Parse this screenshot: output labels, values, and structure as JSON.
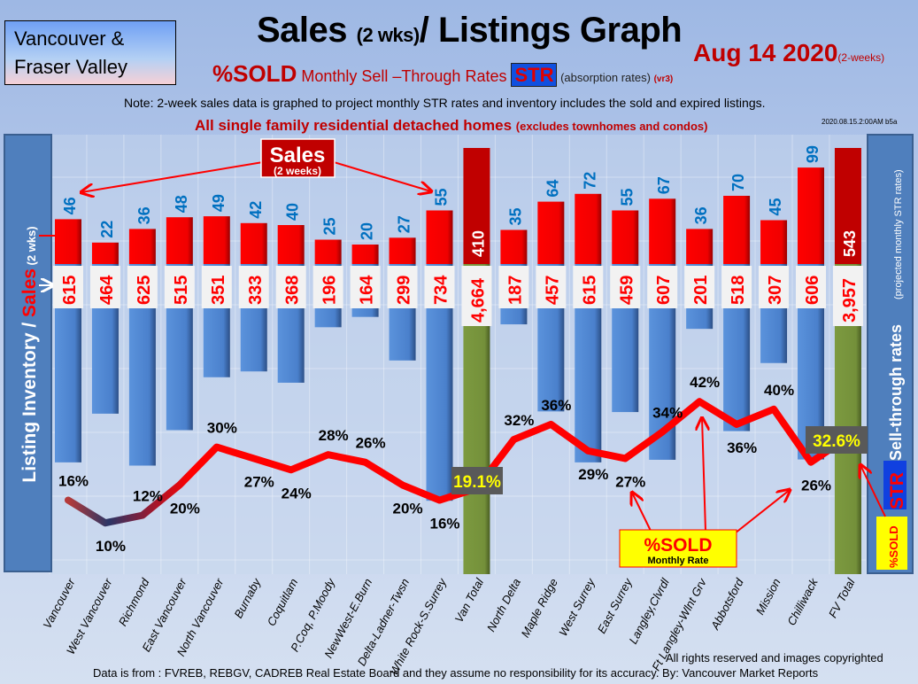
{
  "header": {
    "region": [
      "Vancouver &",
      "Fraser Valley"
    ],
    "title_main": "Sales ",
    "title_small": "(2 wks)",
    "title_rest": "/ Listings Graph",
    "date": "Aug 14  2020",
    "date_note": "(2-weeks)",
    "sold_label": "%SOLD",
    "str_desc": " Monthly Sell –Through Rates ",
    "str_badge": "STR",
    "absorption": "  (absorption rates) ",
    "version": "(vr3)",
    "note": "Note: 2-week sales data is graphed to project monthly STR rates and inventory includes the sold and expired listings.",
    "scope": "All single family residential detached homes ",
    "scope_note": "(excludes townhomes and condos)",
    "stamp": "2020.08.15.2:00AM b5a"
  },
  "footer": {
    "rights": "All rights reserved and  images copyrighted",
    "source": "Data is from : FVREB, REBGV, CADREB Real Estate Board and they assume no responsibility for its accuracy. By: Vancouver Market Reports"
  },
  "chart_data": {
    "type": "bar",
    "title": "Sales (2 wks)/ Listings Graph",
    "left_axis_label": {
      "part1": "Listing Inventory / ",
      "part2": "Sales",
      "part3": " (2  wks)"
    },
    "right_axis_label": {
      "main": "Sell-through rates",
      "sub": "  (projected monthly STR rates)",
      "str": "STR",
      "sold": "%SOLD"
    },
    "annotations": {
      "sales": "Sales",
      "sales_sub": "(2 weeks)",
      "sold": "%SOLD",
      "sold_sub": "Monthly Rate"
    },
    "categories": [
      "Vancouver",
      "West Vancouver",
      "Richmond",
      "East Vancouver",
      "North Vancouver",
      "Burnaby",
      "Coquitlam",
      "P.Coq, P.Moody",
      "NewWest-E.Burn",
      "Delta-Ladner-Twsn",
      "White Rock-S.Surrey",
      "Van Total",
      "North Delta",
      "Maple Ridge",
      "West Surrey",
      "East Surrey",
      "Langley,Clvrdl",
      "Ft Langley-Wlnt Grv",
      "Abbotsford",
      "Mission",
      "Chilliwack",
      "FV Total"
    ],
    "totals": [
      "Van Total",
      "FV Total"
    ],
    "series": [
      {
        "name": "Sales (2 weeks)",
        "values": [
          46,
          22,
          36,
          48,
          49,
          42,
          40,
          25,
          20,
          27,
          55,
          410,
          35,
          64,
          72,
          55,
          67,
          36,
          70,
          45,
          99,
          543
        ],
        "labels": [
          "46",
          "22",
          "36",
          "48",
          "49",
          "42",
          "40",
          "25",
          "20",
          "27",
          "55",
          "410",
          "35",
          "64",
          "72",
          "55",
          "67",
          "36",
          "70",
          "45",
          "99",
          "543"
        ]
      },
      {
        "name": "Listing Inventory",
        "values": [
          615,
          464,
          625,
          515,
          351,
          333,
          368,
          196,
          164,
          299,
          734,
          4664,
          187,
          457,
          615,
          459,
          607,
          201,
          518,
          307,
          606,
          3957
        ],
        "labels": [
          "615",
          "464",
          "625",
          "515",
          "351",
          "333",
          "368",
          "196",
          "164",
          "299",
          "734",
          "4,664",
          "187",
          "457",
          "615",
          "459",
          "607",
          "201",
          "518",
          "307",
          "606",
          "3,957"
        ]
      },
      {
        "name": "%SOLD Monthly STR",
        "values": [
          16,
          10,
          12,
          20,
          30,
          27,
          24,
          28,
          26,
          20,
          16,
          19.1,
          32,
          36,
          29,
          27,
          34,
          42,
          36,
          40,
          26,
          32.6
        ],
        "labels": [
          "16%",
          "10%",
          "12%",
          "20%",
          "30%",
          "27%",
          "24%",
          "28%",
          "26%",
          "20%",
          "16%",
          "19.1%",
          "32%",
          "36%",
          "29%",
          "27%",
          "34%",
          "42%",
          "36%",
          "40%",
          "26%",
          "32.6%"
        ]
      }
    ],
    "colors": {
      "sales": "#ff0000",
      "sales_total": "#c00000",
      "listings": "#4f86d0",
      "listings_total": "#77933c",
      "str_line": "#ff0000",
      "sales_label": "#0070c0"
    }
  }
}
